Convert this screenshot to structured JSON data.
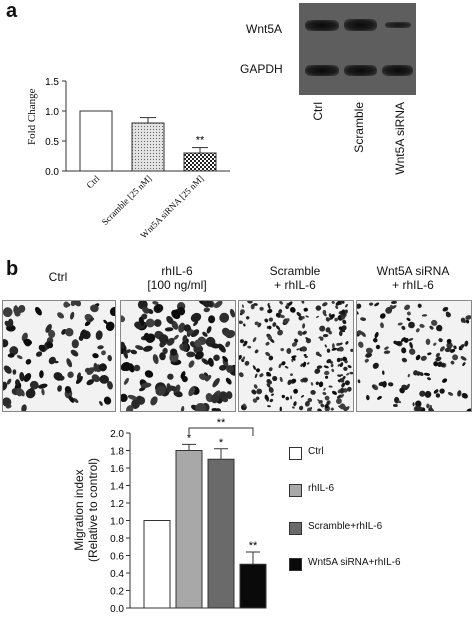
{
  "panel_a": {
    "letter": "a",
    "ylabel": "Fold Change",
    "significance": "**",
    "blot": {
      "row_labels": [
        "Wnt5A",
        "GAPDH"
      ],
      "lane_labels": [
        "Ctrl",
        "Scramble",
        "Wnt5A siRNA"
      ]
    }
  },
  "panel_b": {
    "letter": "b",
    "image_captions": [
      [
        "Ctrl",
        ""
      ],
      [
        "rhIL-6",
        "[100 ng/ml]"
      ],
      [
        "Scramble",
        "+ rhIL-6"
      ],
      [
        "Wnt5A siRNA",
        "+ rhIL-6"
      ]
    ],
    "ylabel_line1": "Migration index",
    "ylabel_line2": "(Relative to control)",
    "bracket_label": "**"
  },
  "chart_data": [
    {
      "type": "bar",
      "categories": [
        "Ctrl",
        "Scramble [25 nM]",
        "Wnt5A siRNA [25 nM]"
      ],
      "values": [
        1.0,
        0.8,
        0.3
      ],
      "errors": [
        0.0,
        0.09,
        0.09
      ],
      "annotations": [
        "",
        "",
        "**"
      ],
      "ylabel": "Fold Change",
      "ylim": [
        0,
        1.5
      ],
      "yticks": [
        "0.0",
        "0.5",
        "1.0",
        "1.5"
      ],
      "fills": [
        "#ffffff",
        "#c8c8c8",
        "#444444"
      ]
    },
    {
      "type": "bar",
      "categories": [
        "Ctrl",
        "rhIL-6",
        "Scramble+rhIL-6",
        "Wnt5A siRNA+rhIL-6"
      ],
      "values": [
        1.0,
        1.8,
        1.7,
        0.5
      ],
      "errors": [
        0.0,
        0.07,
        0.12,
        0.14
      ],
      "annotations": [
        "",
        "*",
        "*",
        "**"
      ],
      "ylabel": "Migration index (Relative to control)",
      "ylim": [
        0,
        2.0
      ],
      "yticks": [
        "0.0",
        "0.2",
        "0.4",
        "0.6",
        "0.8",
        "1.0",
        "1.2",
        "1.4",
        "1.6",
        "1.8",
        "2.0"
      ],
      "legend": [
        "Ctrl",
        "rhIL-6",
        "Scramble+rhIL-6",
        "Wnt5A siRNA+rhIL-6"
      ],
      "legend_position": "right",
      "fills": [
        "#ffffff",
        "#a8a8a8",
        "#6a6a6a",
        "#0a0a0a"
      ]
    }
  ]
}
